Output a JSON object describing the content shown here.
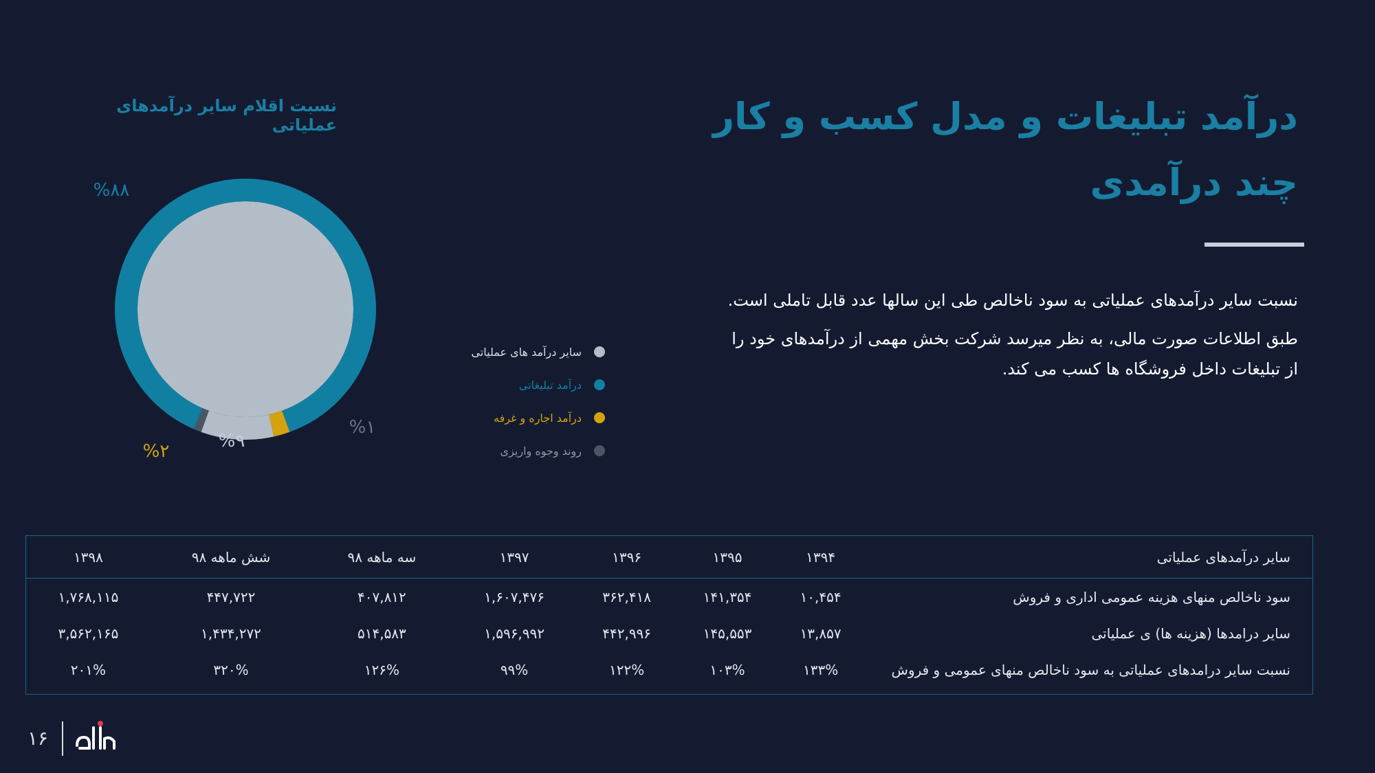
{
  "page": {
    "title": "درآمد تبلیغات و مدل کسب و کار چند درآمدی",
    "paragraphs": [
      "نسبت سایر درآمدهای عملیاتی به سود ناخالص طی این سالها عدد قابل تاملی است.",
      "طبق اطلاعات صورت مالی، به نظر میرسد شرکت بخش مهمی از درآمدهای خود را از تبلیغات داخل فروشگاه ها کسب می کند."
    ],
    "page_number": "۱۶"
  },
  "colors": {
    "background": "#141b31",
    "accent": "#1a7fa3",
    "other_ops": "#b3bdc8",
    "advertising": "#117fa2",
    "rent": "#d4a20e",
    "deposit": "#4a5666"
  },
  "chart_data": {
    "type": "pie",
    "title": "نسبت اقلام سایر درآمدهای عملیاتی",
    "series": [
      {
        "name": "درآمد تبلیغاتی",
        "value": 88,
        "label": "%۸۸",
        "color": "#117fa2"
      },
      {
        "name": "روند وجوه واریزی",
        "value": 1,
        "label": "%۱",
        "color": "#4a5666"
      },
      {
        "name": "سایر درآمد های عملیاتی",
        "value": 9,
        "label": "%۹",
        "color": "#b3bdc8"
      },
      {
        "name": "درآمد اجاره و غرفه",
        "value": 2,
        "label": "%۲",
        "color": "#d4a20e"
      }
    ],
    "legend": [
      {
        "name": "سایر درآمد های عملیاتی",
        "color": "#b3bdc8"
      },
      {
        "name": "درآمد تبلیغاتی",
        "color": "#117fa2"
      },
      {
        "name": "درآمد اجاره و غرفه",
        "color": "#d4a20e"
      },
      {
        "name": "روند وجوه واریزی",
        "color": "#4a5666"
      }
    ],
    "legend_position": "right"
  },
  "table": {
    "header_label": "سایر درآمدهای عملیاتی",
    "columns": [
      "۱۳۹۴",
      "۱۳۹۵",
      "۱۳۹۶",
      "۱۳۹۷",
      "سه ماهه ۹۸",
      "شش ماهه ۹۸",
      "۱۳۹۸"
    ],
    "rows": [
      {
        "label": "سود ناخالص منهای هزینه عمومی اداری و فروش",
        "cells": [
          "۱۰,۴۵۴",
          "۱۴۱,۳۵۴",
          "۳۶۲,۴۱۸",
          "۱,۶۰۷,۴۷۶",
          "۴۰۷,۸۱۲",
          "۴۴۷,۷۲۲",
          "۱,۷۶۸,۱۱۵"
        ]
      },
      {
        "label": "سایر درامدها (هزینه ها) ی عملیاتی",
        "cells": [
          "۱۳,۸۵۷",
          "۱۴۵,۵۵۳",
          "۴۴۲,۹۹۶",
          "۱,۵۹۶,۹۹۲",
          "۵۱۴,۵۸۳",
          "۱,۴۳۴,۲۷۲",
          "۳,۵۶۲,۱۶۵"
        ]
      },
      {
        "label": "نسبت سایر درامدهای عملیاتی به سود ناخالص منهای عمومی و فروش",
        "cells": [
          "۱۳۳%",
          "۱۰۳%",
          "۱۲۲%",
          "۹۹%",
          "۱۲۶%",
          "۳۲۰%",
          "۲۰۱%"
        ]
      }
    ]
  }
}
